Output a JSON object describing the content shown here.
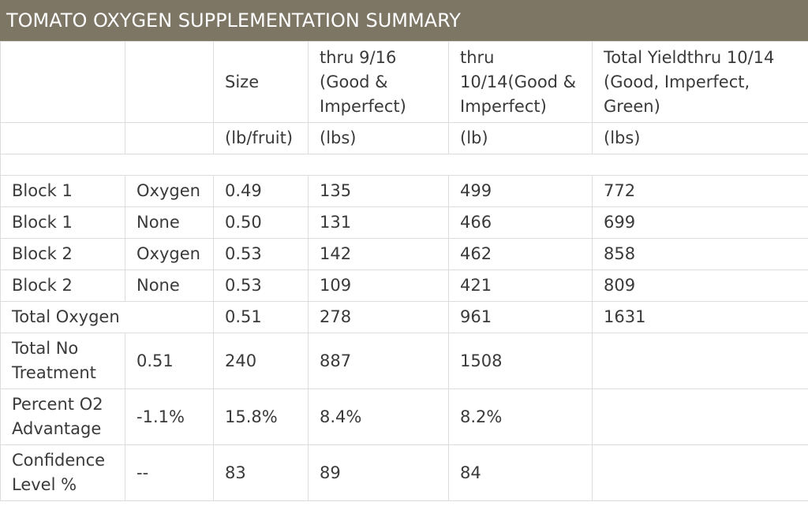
{
  "title": "TOMATO OXYGEN SUPPLEMENTATION SUMMARY",
  "header": {
    "size": "Size",
    "thru_916": "thru 9/16 (Good & Imperfect)",
    "thru_1014": "thru 10/14(Good & Imperfect)",
    "total_yield": "Total Yieldthru 10/14 (Good, Imperfect, Green)"
  },
  "units": {
    "size": "(lb/fruit)",
    "thru_916": "(lbs)",
    "thru_1014": "(lb)",
    "total_yield": "(lbs)"
  },
  "rows": [
    {
      "block": "Block 1",
      "treatment": "Oxygen",
      "size": "0.49",
      "thru_916": "135",
      "thru_1014": "499",
      "total_yield": "772"
    },
    {
      "block": "Block 1",
      "treatment": "None",
      "size": "0.50",
      "thru_916": "131",
      "thru_1014": "466",
      "total_yield": "699"
    },
    {
      "block": "Block 2",
      "treatment": "Oxygen",
      "size": "0.53",
      "thru_916": "142",
      "thru_1014": "462",
      "total_yield": "858"
    },
    {
      "block": "Block 2",
      "treatment": "None",
      "size": "0.53",
      "thru_916": "109",
      "thru_1014": "421",
      "total_yield": "809"
    }
  ],
  "total_oxygen": {
    "label": "Total Oxygen",
    "size": "0.51",
    "thru_916": "278",
    "thru_1014": "961",
    "total_yield": "1631"
  },
  "total_no_treatment": {
    "label": "Total No Treatment",
    "v1": "0.51",
    "v2": "240",
    "v3": "887",
    "v4": "1508"
  },
  "percent_o2": {
    "label": "Percent O2 Advantage",
    "v1": "-1.1%",
    "v2": "15.8%",
    "v3": "8.4%",
    "v4": "8.2%"
  },
  "confidence": {
    "label": "Confidence Level %",
    "v1": "--",
    "v2": "83",
    "v3": "89",
    "v4": "84"
  }
}
